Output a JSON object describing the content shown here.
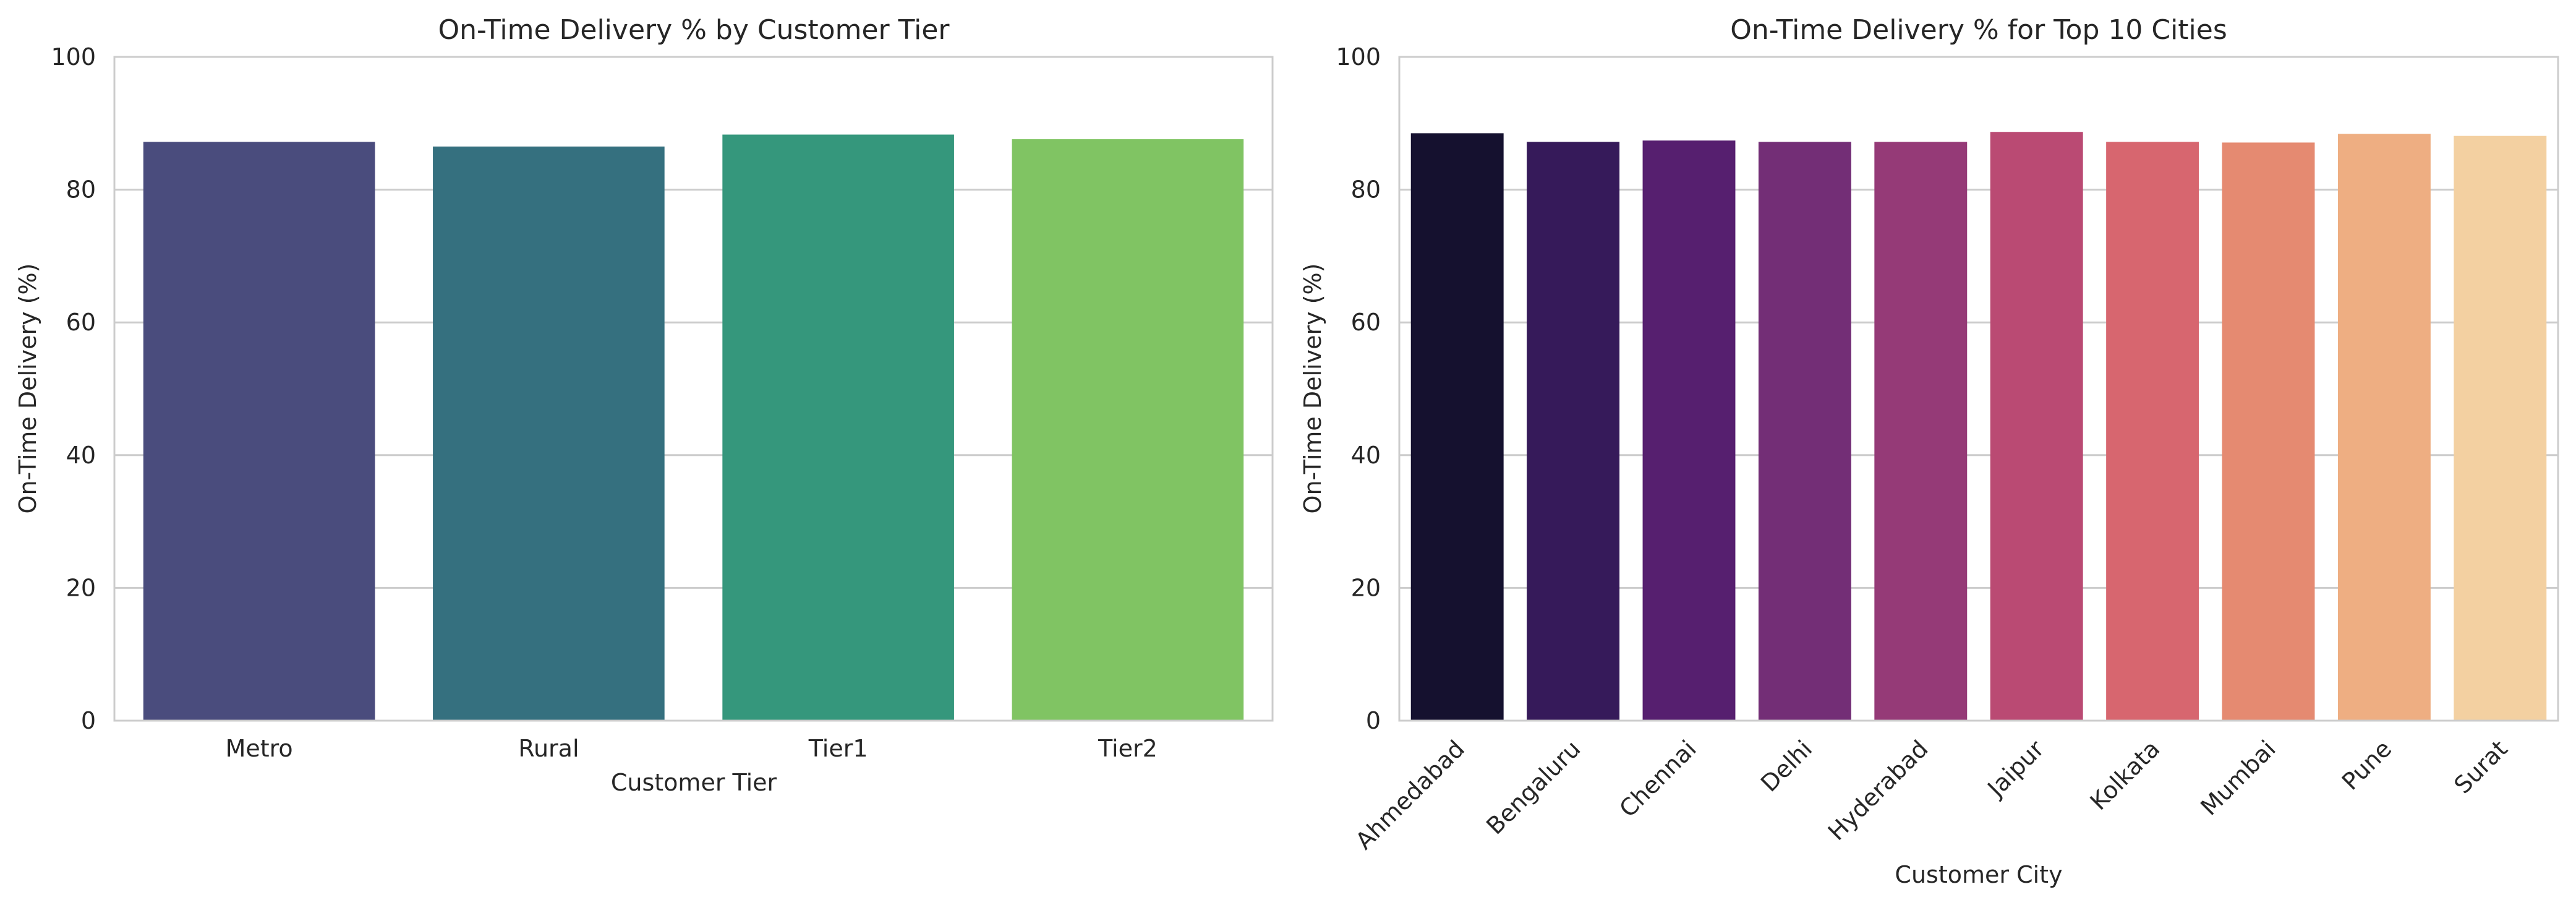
{
  "chart_data": [
    {
      "type": "bar",
      "title": "On-Time Delivery % by Customer Tier",
      "xlabel": "Customer Tier",
      "ylabel": "On-Time Delivery (%)",
      "ylim": [
        0,
        100
      ],
      "yticks": [
        0,
        20,
        40,
        60,
        80,
        100
      ],
      "grid": "horizontal",
      "categories": [
        "Metro",
        "Rural",
        "Tier1",
        "Tier2"
      ],
      "values": [
        87.2,
        86.5,
        88.3,
        87.6
      ],
      "colors": [
        "#4A4C7D",
        "#35707F",
        "#35977C",
        "#80C463"
      ],
      "tick_rotation": 0
    },
    {
      "type": "bar",
      "title": "On-Time Delivery % for Top 10 Cities",
      "xlabel": "Customer City",
      "ylabel": "On-Time Delivery (%)",
      "ylim": [
        0,
        100
      ],
      "yticks": [
        0,
        20,
        40,
        60,
        80,
        100
      ],
      "grid": "horizontal",
      "categories": [
        "Ahmedabad",
        "Bengaluru",
        "Chennai",
        "Delhi",
        "Hyderabad",
        "Jaipur",
        "Kolkata",
        "Mumbai",
        "Pune",
        "Surat"
      ],
      "values": [
        88.5,
        87.2,
        87.4,
        87.2,
        87.2,
        88.7,
        87.2,
        87.1,
        88.4,
        88.1
      ],
      "colors": [
        "#15112F",
        "#361A5A",
        "#561F6F",
        "#732E76",
        "#953A77",
        "#BA4A73",
        "#D7666F",
        "#E58A71",
        "#EEAE82",
        "#F3D0A1"
      ],
      "tick_rotation": -45
    }
  ]
}
